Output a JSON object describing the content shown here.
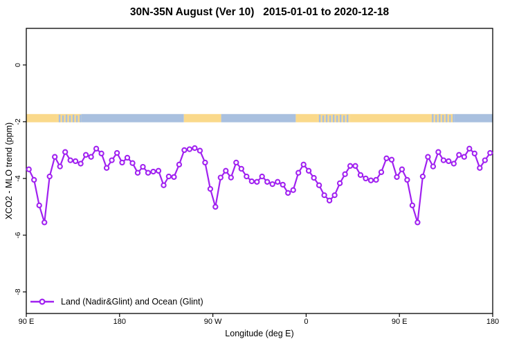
{
  "chart_data": {
    "type": "line",
    "title": "30N-35N August (Ver 10)   2015-01-01 to 2020-12-18",
    "xlabel": "Longitude (deg E)",
    "ylabel": "XCO2 - MLO trend (ppm)",
    "xlim": [
      90,
      540
    ],
    "ylim": [
      -8.76,
      1.29
    ],
    "grid": false,
    "axis_color": "#000000",
    "x_ticks": [
      {
        "pos": 90,
        "label": "90 E"
      },
      {
        "pos": 180,
        "label": "180"
      },
      {
        "pos": 270,
        "label": "90 W"
      },
      {
        "pos": 360,
        "label": "0"
      },
      {
        "pos": 450,
        "label": "90 E"
      },
      {
        "pos": 540,
        "label": "180"
      }
    ],
    "y_ticks": [
      {
        "pos": 0,
        "label": "0"
      },
      {
        "pos": -2,
        "label": "-2"
      },
      {
        "pos": -4,
        "label": "-4"
      },
      {
        "pos": -6,
        "label": "-6"
      },
      {
        "pos": -8,
        "label": "-8"
      }
    ],
    "series": [
      {
        "name": "Land (Nadir&Glint) and Ocean (Glint)",
        "color": "#A020F0",
        "marker": "open-circle",
        "x": [
          92.5,
          97.5,
          102.5,
          107.5,
          112.5,
          117.5,
          122.5,
          127.5,
          132.5,
          137.5,
          142.5,
          147.5,
          152.5,
          157.5,
          162.5,
          167.5,
          172.5,
          177.5,
          182.5,
          187.5,
          192.5,
          197.5,
          202.5,
          207.5,
          212.5,
          217.5,
          222.5,
          227.5,
          232.5,
          237.5,
          242.5,
          247.5,
          252.5,
          257.5,
          262.5,
          267.5,
          272.5,
          277.5,
          282.5,
          287.5,
          292.5,
          297.5,
          302.5,
          307.5,
          312.5,
          317.5,
          322.5,
          327.5,
          332.5,
          337.5,
          342.5,
          347.5,
          352.5,
          357.5,
          362.5,
          367.5,
          372.5,
          377.5,
          382.5,
          387.5,
          392.5,
          397.5,
          402.5,
          407.5,
          412.5,
          417.5,
          422.5,
          427.5,
          432.5,
          437.5,
          442.5,
          447.5,
          452.5,
          457.5,
          462.5,
          467.5,
          472.5,
          477.5,
          482.5,
          487.5,
          492.5,
          497.5,
          502.5,
          507.5,
          512.5,
          517.5,
          522.5,
          527.5,
          532.5,
          537.5
        ],
        "y": [
          -3.68,
          -4.05,
          -4.95,
          -5.55,
          -3.93,
          -3.24,
          -3.58,
          -3.07,
          -3.36,
          -3.39,
          -3.48,
          -3.17,
          -3.24,
          -2.95,
          -3.12,
          -3.63,
          -3.36,
          -3.1,
          -3.44,
          -3.27,
          -3.46,
          -3.8,
          -3.59,
          -3.8,
          -3.76,
          -3.73,
          -4.24,
          -3.93,
          -3.95,
          -3.51,
          -3.0,
          -2.97,
          -2.93,
          -3.02,
          -3.44,
          -4.37,
          -5.0,
          -3.97,
          -3.73,
          -3.97,
          -3.44,
          -3.66,
          -3.93,
          -4.1,
          -4.12,
          -3.93,
          -4.12,
          -4.2,
          -4.12,
          -4.22,
          -4.51,
          -4.41,
          -3.8,
          -3.51,
          -3.73,
          -3.98,
          -4.24,
          -4.59,
          -4.78,
          -4.59,
          -4.17,
          -3.85,
          -3.56,
          -3.56,
          -3.88,
          -4.0,
          -4.07,
          -4.05,
          -3.78,
          -3.29,
          -3.34,
          -3.95,
          -3.68,
          -4.05,
          -4.95,
          -5.55,
          -3.93,
          -3.24,
          -3.58,
          -3.07,
          -3.36,
          -3.39,
          -3.48,
          -3.17,
          -3.24,
          -2.95,
          -3.12,
          -3.63,
          -3.36,
          -3.1
        ]
      }
    ],
    "surface_band": {
      "description": "land/ocean strip",
      "value_top": -1.73,
      "value_bottom": -2.02,
      "colors": {
        "land": "#FAD98B",
        "ocean": "#A9C0DF"
      },
      "segments": [
        {
          "from": 90,
          "to": 120,
          "type": "land"
        },
        {
          "from": 120,
          "to": 143,
          "type": "mixed"
        },
        {
          "from": 143,
          "to": 242,
          "type": "ocean"
        },
        {
          "from": 242,
          "to": 278,
          "type": "land"
        },
        {
          "from": 278,
          "to": 350,
          "type": "ocean"
        },
        {
          "from": 350,
          "to": 371,
          "type": "land"
        },
        {
          "from": 371,
          "to": 402,
          "type": "mixed"
        },
        {
          "from": 402,
          "to": 480,
          "type": "land"
        },
        {
          "from": 480,
          "to": 503,
          "type": "mixed"
        },
        {
          "from": 503,
          "to": 540,
          "type": "ocean"
        }
      ]
    },
    "legend": {
      "position": "bottom-left",
      "entries": [
        {
          "label": "Land (Nadir&Glint) and Ocean (Glint)",
          "color": "#A020F0",
          "marker": "open-circle"
        }
      ]
    }
  }
}
